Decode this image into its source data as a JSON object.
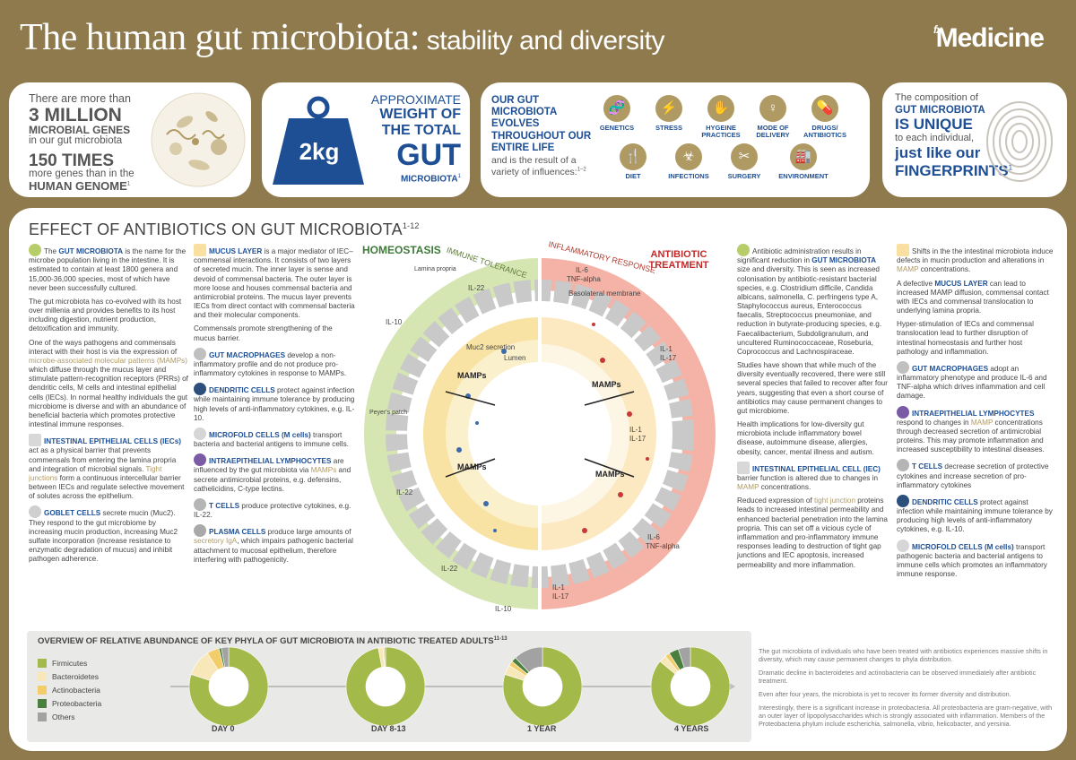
{
  "header": {
    "title_main": "The human gut microbiota:",
    "title_sub": " stability and diversity",
    "brand_fx": "fx",
    "brand": "Medicine"
  },
  "card1": {
    "line1": "There are more than",
    "big1": "3 MILLION",
    "line2": "MICROBIAL GENES",
    "line3": "in our gut microbiota",
    "big2": "150 TIMES",
    "line4": "more genes than in the",
    "line5": "HUMAN GENOME",
    "ref": "1"
  },
  "card2": {
    "l1": "APPROXIMATE",
    "l2": "WEIGHT OF",
    "l3": "THE TOTAL",
    "gut": "GUT",
    "l4": "MICROBIOTA",
    "ref": "1",
    "weight": "2kg"
  },
  "card3": {
    "bold": "OUR GUT MICROBIOTA EVOLVES THROUGHOUT OUR ENTIRE LIFE",
    "normal": "and is the result of a variety of influences:",
    "ref": "1–2",
    "influences": [
      {
        "label": "GENETICS",
        "glyph": "🧬",
        "icon": "dna-icon"
      },
      {
        "label": "STRESS",
        "glyph": "⚡",
        "icon": "stress-icon"
      },
      {
        "label": "HYGEINE PRACTICES",
        "glyph": "✋",
        "icon": "hand-wash-icon"
      },
      {
        "label": "MODE OF DELIVERY",
        "glyph": "♀",
        "icon": "delivery-icon"
      },
      {
        "label": "DRUGS/ ANTIBIOTICS",
        "glyph": "💊",
        "icon": "pill-icon"
      },
      {
        "label": "DIET",
        "glyph": "🍴",
        "icon": "diet-icon"
      },
      {
        "label": "INFECTIONS",
        "glyph": "☣",
        "icon": "biohazard-icon"
      },
      {
        "label": "SURGERY",
        "glyph": "✂",
        "icon": "scalpel-icon"
      },
      {
        "label": "ENVIRONMENT",
        "glyph": "🏭",
        "icon": "factory-icon"
      }
    ]
  },
  "card4": {
    "l1": "The composition of",
    "l2": "GUT MICROBIOTA",
    "l3": "IS UNIQUE",
    "l4": "to each individual,",
    "l5": "just like our",
    "l6": "FINGERPRINTS",
    "ref": "1"
  },
  "main": {
    "section_title": "EFFECT OF ANTIBIOTICS ON GUT MICROBIOTA",
    "section_ref": "1-12",
    "homeostasis": "HOMEOSTASIS",
    "antibiotic_treatment": "ANTIBIOTIC TREATMENT",
    "immune_tolerance": "IMMUNE TOLERANCE",
    "inflammatory_response": "INFLAMMATORY RESPONSE",
    "diagram_labels": {
      "mamps": "MAMPs",
      "il22": "IL-22",
      "il10": "IL-10",
      "il6": "IL-6",
      "tnf": "TNF-alpha",
      "il1": "IL-1",
      "il17": "IL-17",
      "lamina": "Lamina propria",
      "muc2": "Muc2 secretion",
      "lumen": "Lumen",
      "peyers": "Peyer's patch",
      "basolateral": "Basolateral membrane"
    }
  },
  "col1": {
    "p1a": "The ",
    "p1b": "GUT MICROBIOTA",
    "p1c": " is the name for the microbe population living in the intestine. It is estimated to contain at least 1800 genera and 15,000-36,000 species, most of which have never been successfully cultured.",
    "p2": "The gut microbiota has co-evolved with its host over millenia and provides benefits to its host including digestion, nutrient production, detoxification and immunity.",
    "p3a": "One of the ways pathogens and commensals interact with their host is via the expression of ",
    "p3b": "microbe-associated molecular patterns (MAMPs)",
    "p3c": " which diffuse through the mucus layer and stimulate pattern-recognition receptors (PRRs) of dendritic cells, M cells and intestinal epithelial cells (IECs). In normal healthy individuals the gut microbiome is diverse and with an abundance of beneficial bacteria which promotes protective intestinal immune responses.",
    "p4a": "INTESTINAL EPITHELIAL CELLS (IECs)",
    "p4b": " act as a physical barrier that prevents commensals from entering the lamina propria and integration of microbial signals. ",
    "p4c": "Tight junctions",
    "p4d": " form a continuous intercellular barrier between IECs and regulate selective movement of solutes across the epithelium.",
    "p5a": "GOBLET CELLS",
    "p5b": " secrete mucin (Muc2). They respond to the gut microbiome by increasing mucin production, increasing Muc2 sulfate incorporation (increase resistance to enzymatic degradation of mucus) and inhibit pathogen adherence."
  },
  "col2": {
    "p1a": "MUCUS LAYER",
    "p1b": " is a major mediator of IEC–commensal interactions. It consists of two layers of secreted mucin. The inner layer is sense and devoid of commensal bacteria. The outer layer is more loose and houses commensal bacteria and antimicrobial proteins. The mucus layer prevents IECs from direct contact with commensal bacteria and their molecular components.",
    "p2": "Commensals promote strengthening of the mucus barrier.",
    "p3a": "GUT MACROPHAGES",
    "p3b": " develop a non-inflammatory profile and do not produce pro-inflammatory cytokines in response to MAMPs.",
    "p4a": "DENDRITIC CELLS",
    "p4b": " protect against infection while maintaining immune tolerance by producing high levels of anti-inflammatory cytokines, e.g. IL-10.",
    "p5a": "MICROFOLD CELLS (M cells)",
    "p5b": " transport bacteria and bacterial antigens to immune cells.",
    "p6a": "INTRAEPITHELIAL LYMPHOCYTES",
    "p6b": " are influenced by the gut microbiota via ",
    "p6c": "MAMPs",
    "p6d": " and secrete antimicrobial proteins, e.g. defensins, cathelicidins, C-type lectins.",
    "p7a": "T CELLS",
    "p7b": " produce protective cytokines, e.g. IL-22.",
    "p8a": "PLASMA CELLS",
    "p8b": " produce large amounts of ",
    "p8c": "secretory IgA",
    "p8d": ", which impairs pathogenic bacterial attachment to mucosal epithelium, therefore interfering with pathogenicity."
  },
  "col3": {
    "p1a": "Antibiotic administration results in significant reduction in ",
    "p1b": "GUT MICROBIOTA",
    "p1c": " size and diversity. This is seen as increased colonisation by antibiotic-resistant bacterial species, e.g. Clostridium difficile, Candida albicans, salmonella, C. perfringens type A, Staphylococcus aureus, Enterococcus faecalis, Streptococcus pneumoniae, and reduction in butyrate-producing species, e.g. Faecalibacterium, Subdoligranulum, and uncultered Ruminococcaceae, Roseburia, Coprococcus and Lachnospiraceae.",
    "p2": "Studies have shown that while much of the diversity eventually recovered, there were still several species that failed to recover after four years, suggesting that even a short course of antibiotics may cause permanent changes to gut microbiome.",
    "p3": "Health implications for low-diversity gut microbiota include inflammatory bowel disease, autoimmune disease, allergies, obesity, cancer, mental illness and autism.",
    "p4a": "INTESTINAL EPITHELIAL CELL (IEC)",
    "p4b": " barrier function is altered due to changes in ",
    "p4c": "MAMP",
    "p4d": " concentrations.",
    "p5a": "Reduced expression of ",
    "p5b": "tight junction",
    "p5c": " proteins leads to increased intestinal permeability and enhanced bacterial penetration into the lamina propria. This can set off a vicious cycle of inflammation and pro-inflammatory immune responses leading to destruction of tight gap junctions and IEC apoptosis, increased permeability and more inflammation."
  },
  "col4": {
    "p1a": "Shifts in the the intestinal microbiota induce defects in mucin production and alterations in ",
    "p1b": "MAMP",
    "p1c": " concentrations.",
    "p2a": "A defective ",
    "p2b": "MUCUS LAYER",
    "p2c": " can lead to increased MAMP diffusion, commensal contact with IECs and commensal translocation to underlying lamina propria.",
    "p3": "Hyper-stimulation of IECs and commensal translocation lead to further disruption of intestinal homeostasis and further host pathology and inflammation.",
    "p4a": "GUT MACROPHAGES",
    "p4b": " adopt an inflammatory phenotype and produce IL-6 and TNF-alpha which drives inflammation and cell damage.",
    "p5a": "INTRAEPITHELIAL LYMPHOCYTES",
    "p5b": " respond to changes in ",
    "p5c": "MAMP",
    "p5d": " concentrations through decreased secretion of antimicrobial proteins. This may promote inflammation and increased susceptibility to intestinal diseases.",
    "p6a": "T CELLS",
    "p6b": " decrease secretion of protective cytokines and increase secretion of pro-inflammatory cytokines",
    "p7a": "DENDRITIC CELLS",
    "p7b": " protect against infection while maintaining immune tolerance by producing high levels of anti-inflammatory cytokines, e.g. IL-10.",
    "p8a": "MICROFOLD CELLS (M cells)",
    "p8b": " transport pathogenic bacteria and bacterial antigens to immune cells which promotes an inflammatory immune response."
  },
  "overview": {
    "title": "OVERVIEW OF RELATIVE ABUNDANCE OF KEY PHYLA OF GUT MICROBIOTA IN ANTIBIOTIC TREATED ADULTS",
    "ref": "11-13",
    "legend": [
      {
        "name": "Firmicutes",
        "color": "#a3b94a"
      },
      {
        "name": "Bacteroidetes",
        "color": "#f8e7b8"
      },
      {
        "name": "Actinobacteria",
        "color": "#f3cd6a"
      },
      {
        "name": "Proteobacteria",
        "color": "#4a7f3f"
      },
      {
        "name": "Others",
        "color": "#a2a2a2"
      }
    ],
    "notes": [
      "The gut microbiota of individuals who have been treated with antibiotics experiences massive shifts in diversity, which may cause permanent changes to phyla distribution.",
      "Dramatic decline in bacteroidetes and actinobacteria can be observed immediately after antibiotic treatment.",
      "Even after four years, the microbiota is yet to recover its former diversity and distribution.",
      "Interestingly, there is a significant increase in proteobacteria. All proteobacteria are gram-negative, with an outer layer of lipopolysaccharides which is strongly associated with inflammation. Members of the Proteobacteria phylum include escherichia, salmonella, vibrio, helicobacter, and yersinia."
    ]
  },
  "chart_data": {
    "type": "pie",
    "categories": [
      "DAY 0",
      "DAY 8-13",
      "1 YEAR",
      "4 YEARS"
    ],
    "series": [
      {
        "name": "Firmicutes",
        "values": [
          80,
          97,
          80,
          86
        ]
      },
      {
        "name": "Bacteroidetes",
        "values": [
          11,
          2,
          4,
          3
        ]
      },
      {
        "name": "Actinobacteria",
        "values": [
          5,
          0.5,
          2,
          2
        ]
      },
      {
        "name": "Proteobacteria",
        "values": [
          1,
          0,
          2,
          4
        ]
      },
      {
        "name": "Others",
        "values": [
          3,
          0.5,
          12,
          5
        ]
      }
    ],
    "legend": "left"
  }
}
